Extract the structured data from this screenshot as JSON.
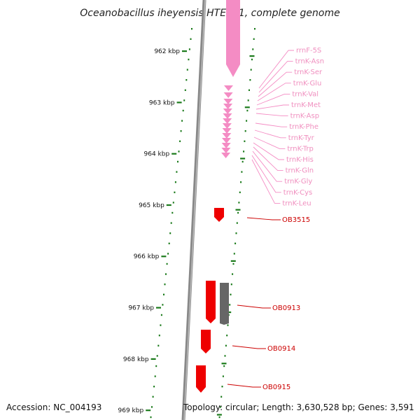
{
  "title": "Oceanobacillus iheyensis HTE831, complete genome",
  "footer": {
    "accession": "Accession: NC_004193",
    "topology": "Topology: circular; Length: 3,630,528 bp; Genes: 3,591"
  },
  "scale": {
    "unit": "kbp",
    "ticks": [
      "962 kbp",
      "963 kbp",
      "964 kbp",
      "965 kbp",
      "966 kbp",
      "967 kbp",
      "968 kbp",
      "969 kbp"
    ]
  },
  "rna_labels": [
    "rrnF-5S",
    "trnK-Asn",
    "trnK-Ser",
    "trnK-Glu",
    "trnK-Val",
    "trnK-Met",
    "trnK-Asp",
    "trnK-Phe",
    "trnK-Tyr",
    "trnK-Trp",
    "trnK-His",
    "trnK-Gln",
    "trnK-Gly",
    "trnK-Cys",
    "trnK-Leu"
  ],
  "gene_labels": [
    "OB3515",
    "OB0913",
    "OB0914",
    "OB0915"
  ],
  "colors": {
    "rna": "#f48cc4",
    "gene": "#ee0000",
    "grey_gene": "#666666",
    "axis": "#808080",
    "ticks": "#1a7a1a"
  }
}
